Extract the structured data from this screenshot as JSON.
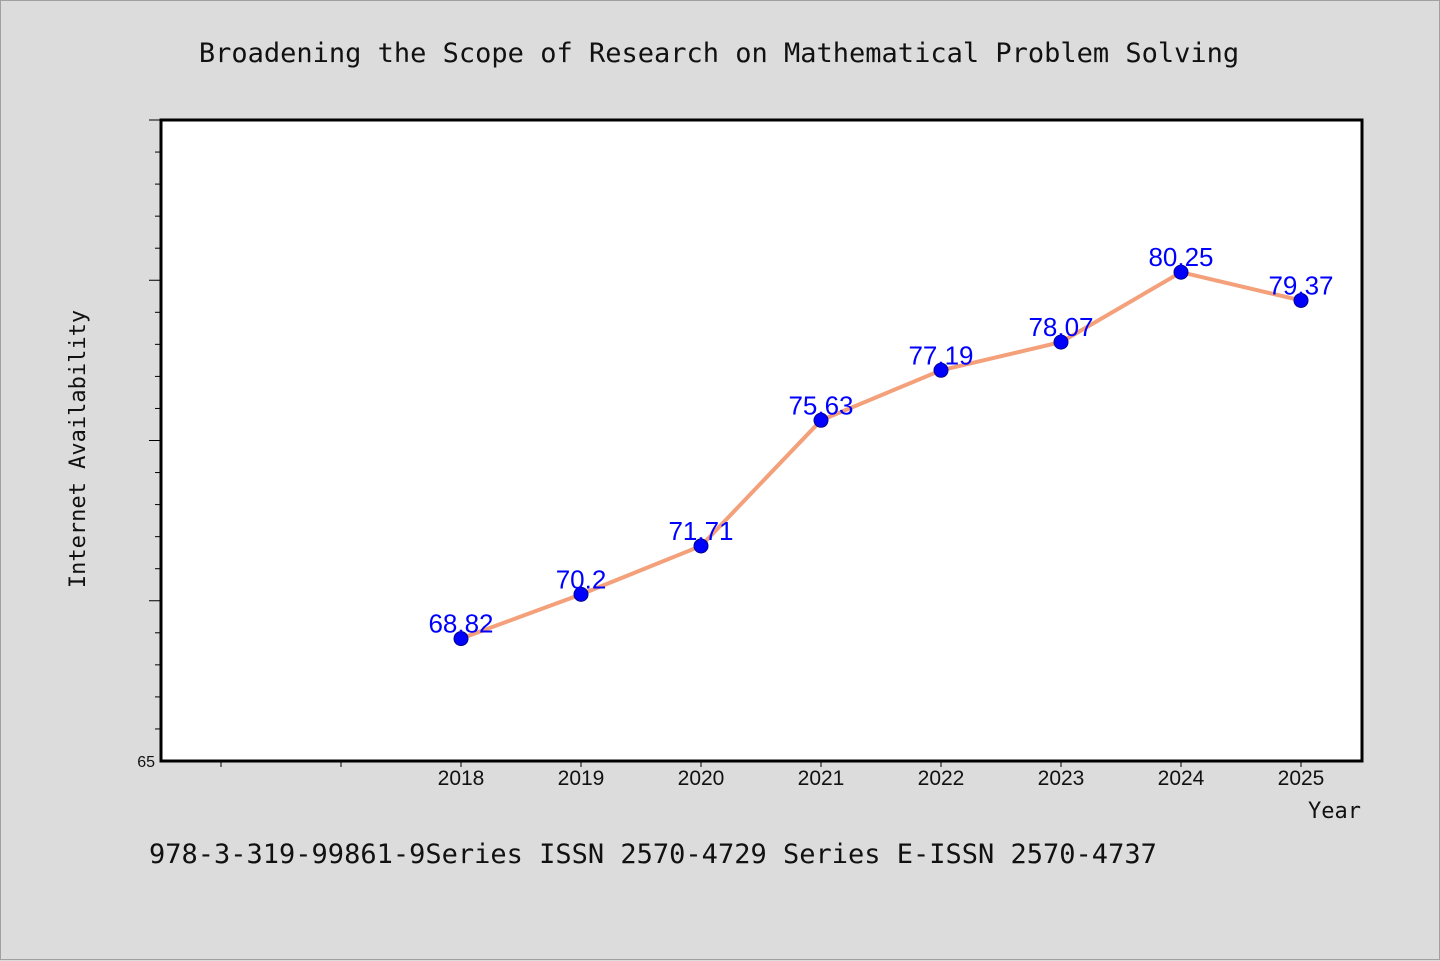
{
  "chart_data": {
    "type": "line",
    "title": "Broadening the Scope of Research on Mathematical Problem Solving",
    "xlabel": "Year",
    "ylabel": "Internet Availability",
    "categories": [
      "2018",
      "2019",
      "2020",
      "2021",
      "2022",
      "2023",
      "2024",
      "2025"
    ],
    "series": [
      {
        "values": [
          68.82,
          70.2,
          71.71,
          75.63,
          77.19,
          78.07,
          80.25,
          79.37
        ],
        "data_labels": [
          "68.82",
          "70.2",
          "71.71",
          "75.63",
          "77.19",
          "78.07",
          "80.25",
          "79.37"
        ]
      }
    ],
    "ylim": [
      65,
      85
    ],
    "y_tick_labels": [
      "65"
    ],
    "grid": false,
    "legend": "none",
    "colors": {
      "line": "#f4a07a",
      "marker": "#0000ff",
      "data_label": "#0000ff",
      "background": "#dcdcdc",
      "plot_background": "#ffffff"
    }
  },
  "footer": "978-3-319-99861-9Series ISSN 2570-4729 Series E-ISSN 2570-4737"
}
